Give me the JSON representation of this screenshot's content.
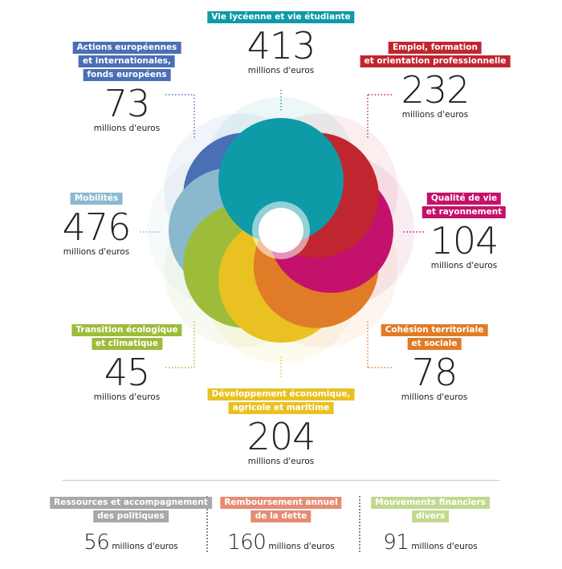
{
  "chart_data": {
    "type": "flower",
    "unit": "millions d'euros",
    "categories": [
      {
        "lines": [
          "Vie lycéenne et vie étudiante"
        ],
        "value": 413,
        "color": "#0e9aa7"
      },
      {
        "lines": [
          "Emploi, formation",
          "et orientation professionnelle"
        ],
        "value": 232,
        "color": "#c0262f"
      },
      {
        "lines": [
          "Qualité de vie",
          "et rayonnement"
        ],
        "value": 104,
        "color": "#c4116b"
      },
      {
        "lines": [
          "Cohésion territoriale",
          "et sociale"
        ],
        "value": 78,
        "color": "#e07c27"
      },
      {
        "lines": [
          "Développement économique,",
          "agricole et maritime"
        ],
        "value": 204,
        "color": "#e9c122"
      },
      {
        "lines": [
          "Transition écologique",
          "et climatique"
        ],
        "value": 45,
        "color": "#9dbc3a"
      },
      {
        "lines": [
          "Mobilités"
        ],
        "value": 476,
        "color": "#8ab9ce"
      },
      {
        "lines": [
          "Actions européennes",
          "et internationales,",
          "fonds européens"
        ],
        "value": 73,
        "color": "#4a6fb5"
      }
    ],
    "other": [
      {
        "lines": [
          "Ressources et accompagnement",
          "des politiques"
        ],
        "value": 56,
        "color": "#a8a8a8"
      },
      {
        "lines": [
          "Remboursement annuel",
          "de la dette"
        ],
        "value": 160,
        "color": "#e58c74"
      },
      {
        "lines": [
          "Mouvements financiers",
          "divers"
        ],
        "value": 91,
        "color": "#c1d98f"
      }
    ]
  }
}
